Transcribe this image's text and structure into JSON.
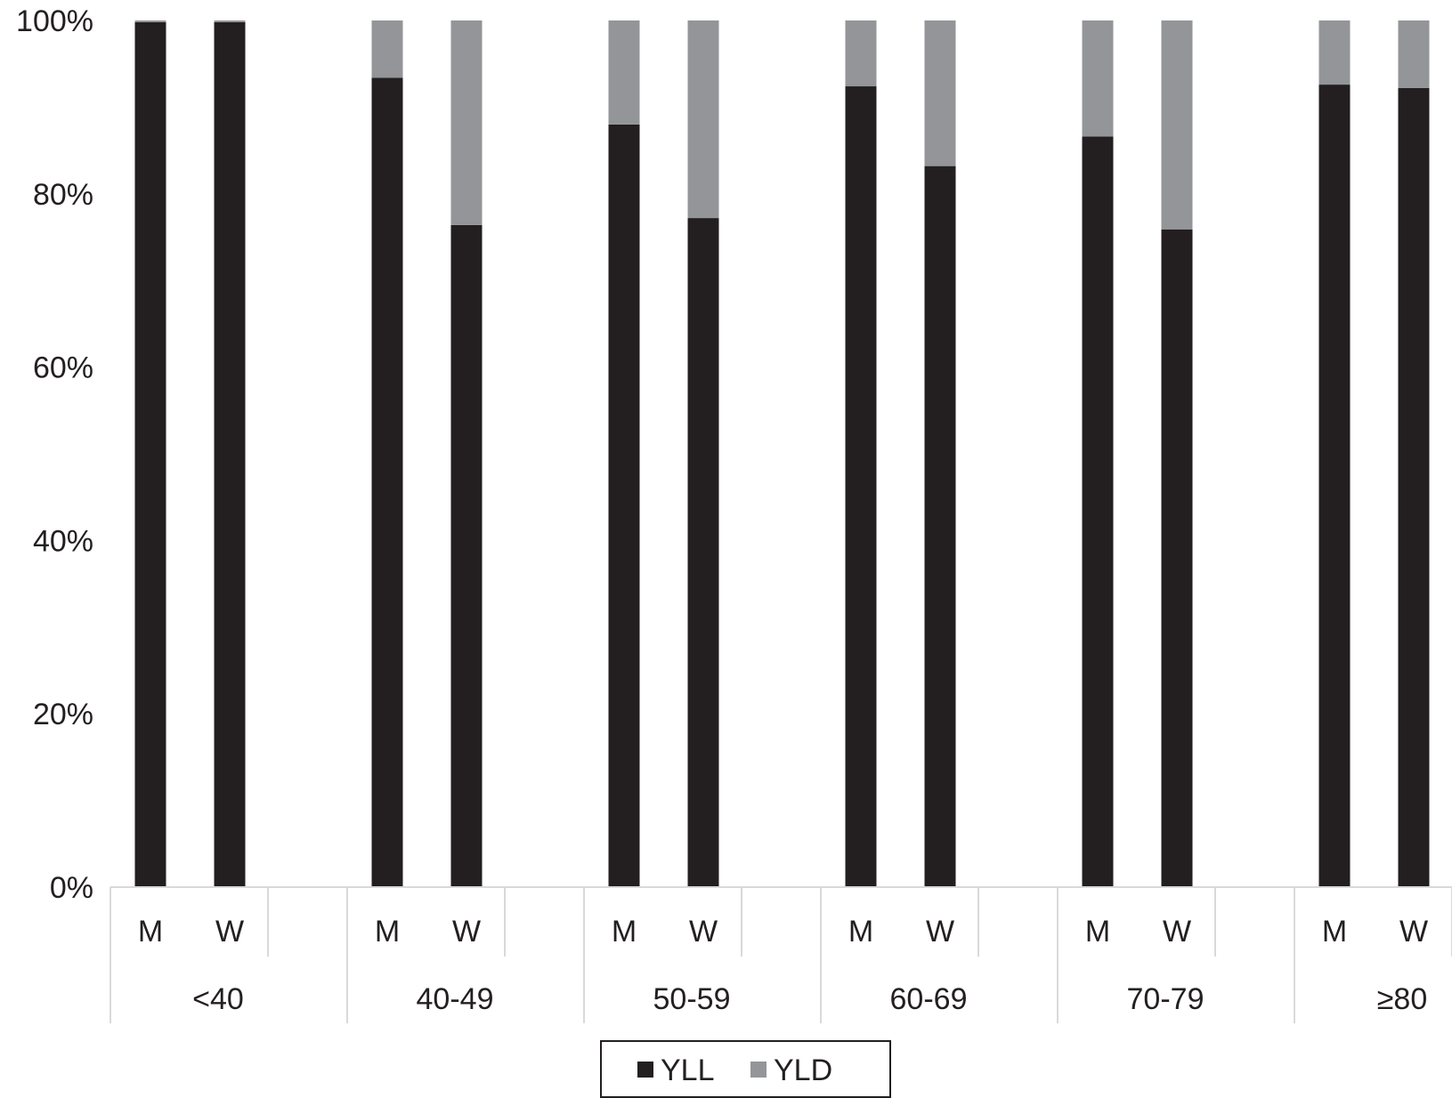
{
  "chart_data": {
    "type": "bar",
    "stacked": true,
    "groups": [
      "<40",
      "40-49",
      "50-59",
      "60-69",
      "70-79",
      "≥80"
    ],
    "sub_categories": [
      "M",
      "W"
    ],
    "series": [
      {
        "name": "YLL",
        "color": "#231f20",
        "values": [
          [
            99.8,
            99.8
          ],
          [
            93.4,
            76.4
          ],
          [
            88.0,
            77.2
          ],
          [
            92.4,
            83.2
          ],
          [
            86.6,
            75.9
          ],
          [
            92.6,
            92.2
          ]
        ]
      },
      {
        "name": "YLD",
        "color": "#939598",
        "values": [
          [
            0.2,
            0.2
          ],
          [
            6.6,
            23.6
          ],
          [
            12.0,
            22.8
          ],
          [
            7.6,
            16.8
          ],
          [
            13.4,
            24.1
          ],
          [
            7.4,
            7.8
          ]
        ]
      }
    ],
    "y_ticks": [
      "0%",
      "20%",
      "40%",
      "60%",
      "80%",
      "100%"
    ],
    "ylim": [
      0,
      100
    ],
    "legend_position": "bottom",
    "grid": false
  }
}
